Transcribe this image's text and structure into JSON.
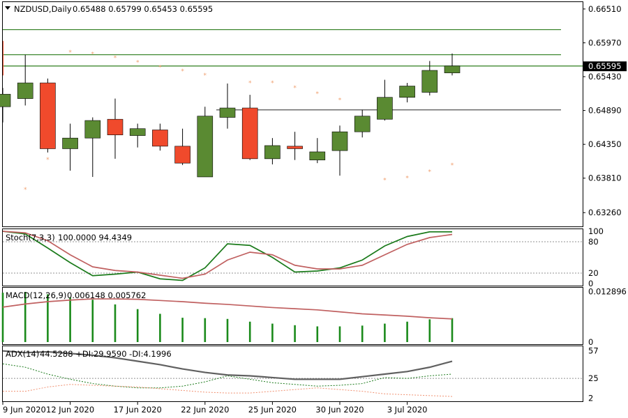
{
  "header": {
    "symbol": "NZDUSD,Daily",
    "ohlc": "0.65488 0.65799 0.65453 0.65595"
  },
  "colors": {
    "bull": "#5a8a32",
    "bear": "#f04a2c",
    "frame": "#000000",
    "hline_green": "#2e7d1e",
    "hline_gray": "#606060",
    "psar": "#f0a070",
    "stoch_main": "#1a7a1a",
    "stoch_signal": "#c06060",
    "macd_hist": "#1a8a1a",
    "macd_signal": "#c06060",
    "adx_main": "#606060",
    "adx_plus": "#1a7a1a",
    "adx_minus": "#f09070",
    "price_badge": "#000000",
    "label_text": "#1a2a5a"
  },
  "price_axis": {
    "ticks": [
      "0.66510",
      "0.65970",
      "0.65430",
      "0.64890",
      "0.64350",
      "0.63810",
      "0.63260"
    ],
    "current": "0.65595"
  },
  "x_labels": [
    "9 Jun 2020",
    "12 Jun 2020",
    "17 Jun 2020",
    "22 Jun 2020",
    "25 Jun 2020",
    "30 Jun 2020",
    "3 Jul 2020"
  ],
  "chart_data": [
    {
      "type": "candlestick",
      "title": "NZDUSD,Daily",
      "ylim": [
        0.6304,
        0.6662
      ],
      "candles": [
        {
          "o": 0.6495,
          "h": 0.6525,
          "l": 0.647,
          "c": 0.6515
        },
        {
          "o": 0.6508,
          "h": 0.6578,
          "l": 0.6497,
          "c": 0.6533
        },
        {
          "o": 0.6533,
          "h": 0.654,
          "l": 0.6422,
          "c": 0.6428
        },
        {
          "o": 0.6428,
          "h": 0.6468,
          "l": 0.6393,
          "c": 0.6445
        },
        {
          "o": 0.6445,
          "h": 0.6478,
          "l": 0.6383,
          "c": 0.6473
        },
        {
          "o": 0.6475,
          "h": 0.6508,
          "l": 0.6412,
          "c": 0.645
        },
        {
          "o": 0.6449,
          "h": 0.6468,
          "l": 0.643,
          "c": 0.646
        },
        {
          "o": 0.6458,
          "h": 0.6468,
          "l": 0.6425,
          "c": 0.6432
        },
        {
          "o": 0.6432,
          "h": 0.646,
          "l": 0.6402,
          "c": 0.6405
        },
        {
          "o": 0.6383,
          "h": 0.6495,
          "l": 0.6383,
          "c": 0.648
        },
        {
          "o": 0.6478,
          "h": 0.6532,
          "l": 0.646,
          "c": 0.6493
        },
        {
          "o": 0.6493,
          "h": 0.6514,
          "l": 0.641,
          "c": 0.6412
        },
        {
          "o": 0.6412,
          "h": 0.6445,
          "l": 0.6403,
          "c": 0.6433
        },
        {
          "o": 0.6432,
          "h": 0.6455,
          "l": 0.641,
          "c": 0.6428
        },
        {
          "o": 0.641,
          "h": 0.6445,
          "l": 0.6405,
          "c": 0.6423
        },
        {
          "o": 0.6425,
          "h": 0.6465,
          "l": 0.6385,
          "c": 0.6455
        },
        {
          "o": 0.6455,
          "h": 0.649,
          "l": 0.6446,
          "c": 0.648
        },
        {
          "o": 0.6475,
          "h": 0.6538,
          "l": 0.6473,
          "c": 0.651
        },
        {
          "o": 0.651,
          "h": 0.6533,
          "l": 0.6502,
          "c": 0.6528
        },
        {
          "o": 0.6518,
          "h": 0.6568,
          "l": 0.6513,
          "c": 0.6553
        },
        {
          "o": 0.6549,
          "h": 0.658,
          "l": 0.6545,
          "c": 0.656
        }
      ],
      "parabolic_sar": [
        {
          "i": 1,
          "v": 0.6363
        },
        {
          "i": 2,
          "v": 0.6411
        },
        {
          "i": 3,
          "v": 0.6582
        },
        {
          "i": 4,
          "v": 0.6579
        },
        {
          "i": 5,
          "v": 0.6573
        },
        {
          "i": 6,
          "v": 0.6566
        },
        {
          "i": 7,
          "v": 0.6558
        },
        {
          "i": 8,
          "v": 0.6552
        },
        {
          "i": 9,
          "v": 0.6545
        },
        {
          "i": 11,
          "v": 0.6533
        },
        {
          "i": 12,
          "v": 0.6533
        },
        {
          "i": 13,
          "v": 0.6525
        },
        {
          "i": 14,
          "v": 0.6516
        },
        {
          "i": 15,
          "v": 0.6506
        },
        {
          "i": 17,
          "v": 0.6378
        },
        {
          "i": 18,
          "v": 0.6381
        },
        {
          "i": 19,
          "v": 0.6391
        },
        {
          "i": 20,
          "v": 0.6402
        }
      ],
      "horizontal_lines": [
        {
          "value": 0.6618,
          "kind": "green"
        },
        {
          "value": 0.6578,
          "kind": "green"
        },
        {
          "value": 0.656,
          "kind": "green"
        },
        {
          "value": 0.649,
          "kind": "gray"
        }
      ]
    },
    {
      "type": "line",
      "title": "Stoch(7,3,3)",
      "label_values": "100.0000 94.4349",
      "ylim": [
        0,
        100
      ],
      "ticks": [
        "100",
        "80",
        "20",
        "0"
      ],
      "levels": [
        80,
        20
      ],
      "series": [
        {
          "values": [
            100,
            95,
            68,
            40,
            15,
            18,
            22,
            9,
            6,
            30,
            76,
            73,
            50,
            22,
            24,
            30,
            45,
            72,
            90,
            99,
            99
          ]
        },
        {
          "values": [
            100,
            97,
            82,
            55,
            32,
            25,
            22,
            16,
            10,
            18,
            45,
            60,
            55,
            35,
            28,
            28,
            35,
            55,
            75,
            88,
            94
          ]
        }
      ]
    },
    {
      "type": "bar",
      "title": "MACD(12,26,9)",
      "label_values": "0.006148 0.005762",
      "ylim": [
        0,
        0.0135
      ],
      "ticks": [
        "0.012896",
        "0"
      ],
      "histogram": [
        0.0126,
        0.0128,
        0.0122,
        0.0114,
        0.0108,
        0.0096,
        0.0084,
        0.0072,
        0.0062,
        0.0061,
        0.0059,
        0.0052,
        0.0047,
        0.0043,
        0.004,
        0.004,
        0.0042,
        0.0047,
        0.0052,
        0.0058,
        0.0061
      ],
      "signal": [
        0.0089,
        0.0097,
        0.0103,
        0.0107,
        0.011,
        0.011,
        0.0109,
        0.0106,
        0.0103,
        0.0099,
        0.0096,
        0.0092,
        0.0088,
        0.0085,
        0.0082,
        0.0077,
        0.0072,
        0.0069,
        0.0066,
        0.0062,
        0.0059
      ]
    },
    {
      "type": "line",
      "title": "ADX(14)",
      "label_values": "44.5288 +DI:29.9590 -DI:4.1996",
      "ylim": [
        0,
        60
      ],
      "ticks": [
        "57",
        "25",
        "2"
      ],
      "levels": [
        25
      ],
      "series": [
        {
          "name": "ADX",
          "values": [
            57,
            55,
            56,
            54,
            52,
            49,
            45,
            41,
            36,
            32,
            29,
            28,
            26,
            24,
            24,
            24,
            27,
            30,
            33,
            38,
            45
          ]
        },
        {
          "name": "+DI",
          "values": [
            42,
            38,
            30,
            24,
            19,
            16,
            14,
            14,
            16,
            21,
            28,
            24,
            20,
            18,
            16,
            17,
            19,
            26,
            25,
            28,
            30
          ]
        },
        {
          "name": "-DI",
          "values": [
            10,
            10,
            15,
            18,
            17,
            16,
            15,
            13,
            11,
            9,
            8,
            8,
            10,
            12,
            14,
            12,
            10,
            7,
            6,
            5,
            4
          ]
        }
      ]
    }
  ]
}
